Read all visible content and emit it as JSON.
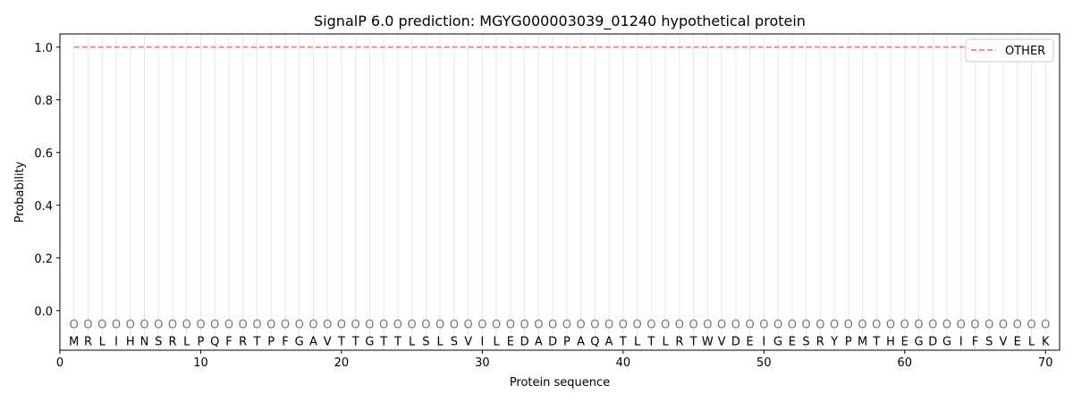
{
  "chart_data": {
    "type": "line",
    "title": "SignalP 6.0 prediction: MGYG000003039_01240 hypothetical protein",
    "xlabel": "Protein sequence",
    "ylabel": "Probability",
    "xlim": [
      0,
      71
    ],
    "ylim": [
      -0.15,
      1.05
    ],
    "xticks": [
      0,
      10,
      20,
      30,
      40,
      50,
      60,
      70
    ],
    "yticks": [
      0.0,
      0.2,
      0.4,
      0.6,
      0.8,
      1.0
    ],
    "ytick_labels": [
      "0.0",
      "0.2",
      "0.4",
      "0.6",
      "0.8",
      "1.0"
    ],
    "grid": "vertical lines at each residue",
    "legend_placement": "top-right",
    "sequence": "MRLIHNSRLPQFRTPFGAVTTGTTLSLSVILEDADPAQATLTLRTWVDEIGESRYPMTHEGDGIFSVELK",
    "predicted_label": "O",
    "series": [
      {
        "name": "OTHER",
        "color": "#f08080",
        "style": "dashed",
        "x_start": 1,
        "x_end": 70,
        "value": 1.0
      }
    ]
  }
}
